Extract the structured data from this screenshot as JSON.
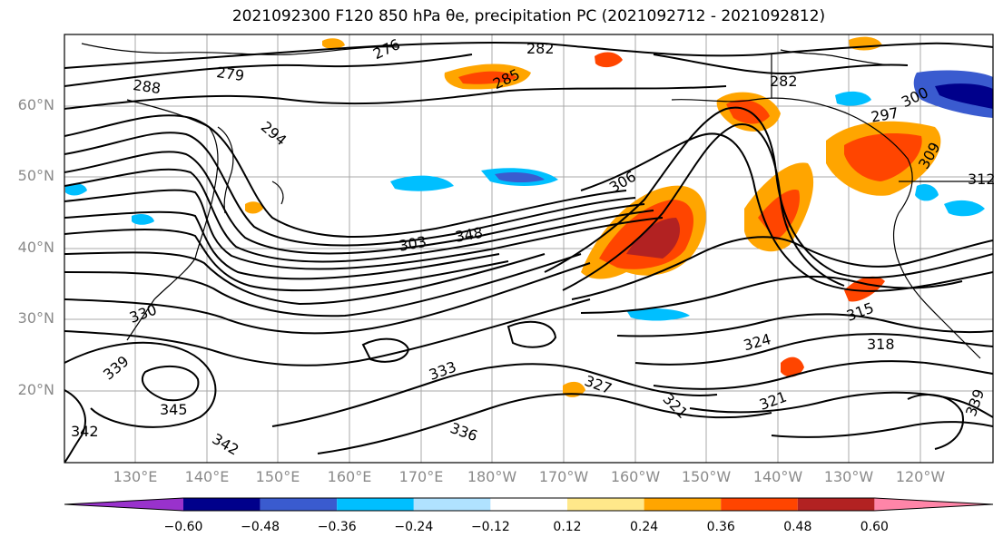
{
  "title": "2021092300 F120 850 hPa θe, precipitation PC (2021092712 - 2021092812)",
  "map": {
    "lat_labels": [
      "60°N",
      "50°N",
      "40°N",
      "30°N",
      "20°N"
    ],
    "lon_labels": [
      "130°E",
      "140°E",
      "150°E",
      "160°E",
      "170°E",
      "180°W",
      "170°W",
      "160°W",
      "150°W",
      "140°W",
      "130°W",
      "120°W"
    ],
    "contour_labels": [
      "276",
      "279",
      "282",
      "282",
      "285",
      "288",
      "294",
      "297",
      "300",
      "303",
      "306",
      "309",
      "312",
      "315",
      "318",
      "321",
      "321",
      "324",
      "327",
      "330",
      "333",
      "336",
      "339",
      "339",
      "342",
      "342",
      "345",
      "348"
    ]
  },
  "colorbar": {
    "tick_labels": [
      "−0.60",
      "−0.48",
      "−0.36",
      "−0.24",
      "−0.12",
      "0.12",
      "0.24",
      "0.36",
      "0.48",
      "0.60"
    ],
    "colors": [
      "#9932cc",
      "#00008b",
      "#3a5bcf",
      "#00bfff",
      "#b0e2ff",
      "#ffffff",
      "#ffe88a",
      "#ffa500",
      "#ff4500",
      "#b22222",
      "#ff85a8"
    ]
  }
}
